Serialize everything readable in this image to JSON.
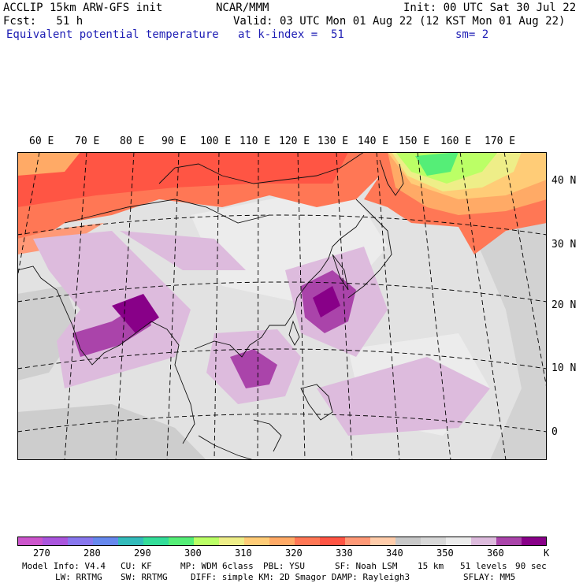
{
  "header": {
    "model": "ACCLIP 15km ARW-GFS init",
    "forecast": "Fcst:   51 h",
    "field": "Equivalent potential temperature",
    "center": "NCAR/MMM",
    "valid": "Valid: 03 UTC Mon 01 Aug 22 (12 KST Mon 01 Aug 22)",
    "level": "at k-index =  51",
    "init": "Init: 00 UTC Sat 30 Jul 22",
    "smooth": "sm= 2"
  },
  "map": {
    "lon_labels": [
      "60 E",
      "70 E",
      "80 E",
      "90 E",
      "100 E",
      "110 E",
      "120 E",
      "130 E",
      "140 E",
      "150 E",
      "160 E",
      "170 E"
    ],
    "lat_labels": [
      "40 N",
      "30 N",
      "20 N",
      "10 N",
      "0"
    ]
  },
  "colorbar": {
    "colors": [
      "#cc55cc",
      "#aa55dd",
      "#8877ee",
      "#6688ee",
      "#33bbbb",
      "#33dd99",
      "#55ee77",
      "#bbff66",
      "#eeee88",
      "#ffcc77",
      "#ffaa66",
      "#ff7755",
      "#ff5544",
      "#ff9977",
      "#ffccaa",
      "#c8c8c8",
      "#d8d8d8",
      "#ececec",
      "#ddbbdd",
      "#aa44aa",
      "#880088"
    ],
    "labels": [
      "270",
      "280",
      "290",
      "300",
      "310",
      "320",
      "330",
      "340",
      "350",
      "360"
    ],
    "unit": "K"
  },
  "footer": {
    "line1": [
      {
        "text": "Model Info: V4.4"
      },
      {
        "text": "CU: KF"
      },
      {
        "text": "MP: WDM 6class"
      },
      {
        "text": "PBL: YSU"
      },
      {
        "text": "SF: Noah LSM"
      },
      {
        "text": "15 km"
      },
      {
        "text": "51 levels"
      },
      {
        "text": "90 sec"
      }
    ],
    "line2": [
      {
        "text": "LW: RRTMG"
      },
      {
        "text": "SW: RRTMG"
      },
      {
        "text": "DIFF: simple KM: 2D Smagor DAMP: Rayleigh3"
      },
      {
        "text": "SFLAY: MM5"
      }
    ]
  }
}
